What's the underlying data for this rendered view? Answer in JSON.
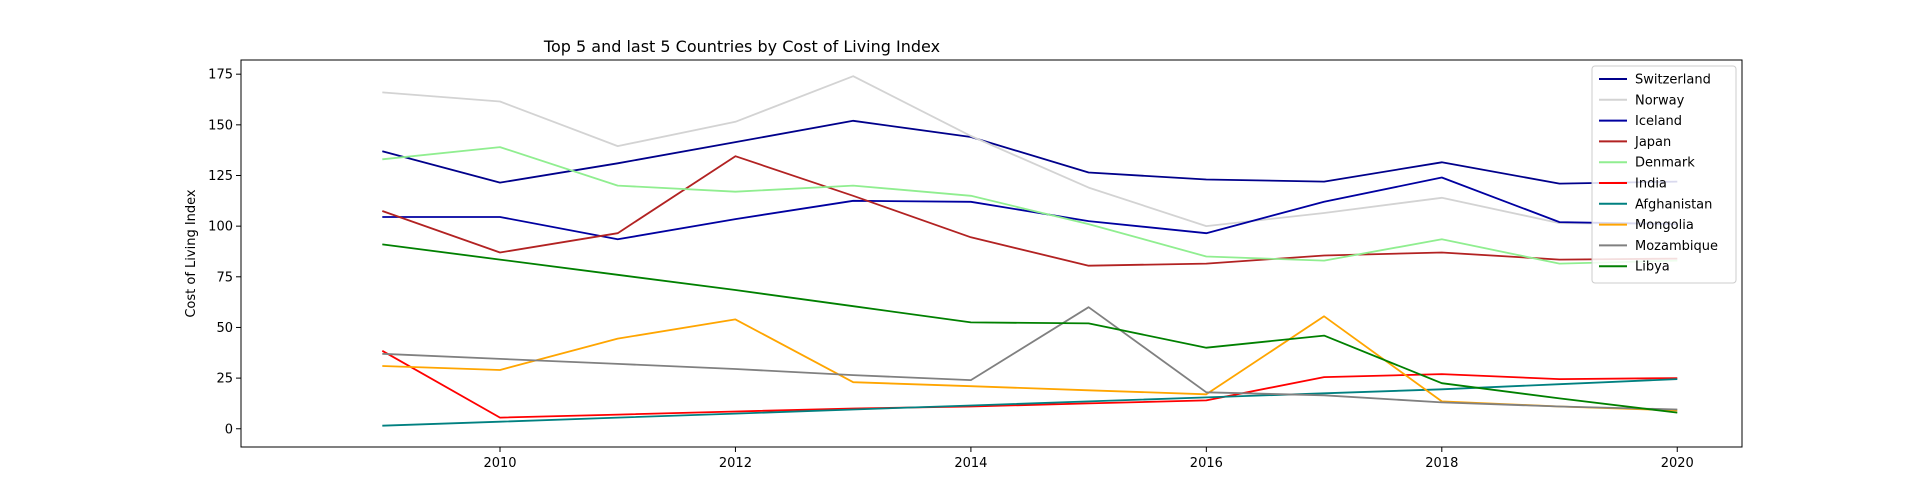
{
  "chart_data": {
    "type": "line",
    "title": "Top 5 and last 5 Countries by Cost of Living Index",
    "xlabel": "",
    "ylabel": "Cost of Living Index",
    "x": [
      2009,
      2010,
      2011,
      2012,
      2013,
      2014,
      2015,
      2016,
      2017,
      2018,
      2019,
      2020
    ],
    "xlim": [
      2007.8,
      2020.55
    ],
    "ylim": [
      -9,
      182
    ],
    "xticks": [
      2010,
      2012,
      2014,
      2016,
      2018,
      2020
    ],
    "yticks": [
      0,
      25,
      50,
      75,
      100,
      125,
      150,
      175
    ],
    "grid": false,
    "legend_position": "top-right",
    "series": [
      {
        "name": "Switzerland",
        "color": "#00008b",
        "values": [
          137,
          121.5,
          131,
          141.5,
          152,
          144,
          126.5,
          123,
          122,
          131.5,
          121,
          122
        ]
      },
      {
        "name": "Norway",
        "color": "#d3d3d3",
        "values": [
          166,
          161.5,
          139.5,
          151.5,
          174,
          144.5,
          119,
          100,
          106.5,
          114,
          101.5,
          101
        ]
      },
      {
        "name": "Iceland",
        "color": "#0000a0",
        "values": [
          104.5,
          104.5,
          93.5,
          103.5,
          112.5,
          112,
          102.5,
          96.5,
          112,
          124,
          102,
          101
        ]
      },
      {
        "name": "Japan",
        "color": "#b22222",
        "values": [
          107.5,
          87,
          96.5,
          134.5,
          115,
          94.5,
          80.5,
          81.5,
          85.5,
          87,
          83.5,
          84
        ]
      },
      {
        "name": "Denmark",
        "color": "#90ee90",
        "values": [
          133,
          139,
          120,
          117,
          120,
          115,
          101,
          85,
          83,
          93.5,
          81.5,
          83
        ]
      },
      {
        "name": "India",
        "color": "#ff0000",
        "values": [
          38.5,
          5.5,
          7,
          8.5,
          10,
          11,
          12.5,
          14,
          25.5,
          27,
          24.5,
          25
        ]
      },
      {
        "name": "Afghanistan",
        "color": "#008080",
        "values": [
          1.5,
          3.5,
          5.5,
          7.5,
          9.5,
          11.5,
          13.5,
          15.5,
          17.5,
          19.5,
          22,
          24.5
        ]
      },
      {
        "name": "Mongolia",
        "color": "#ffa500",
        "values": [
          31,
          29,
          44.5,
          54,
          23,
          21,
          19,
          17,
          55.5,
          13.5,
          11,
          9
        ]
      },
      {
        "name": "Mozambique",
        "color": "#808080",
        "values": [
          37,
          34.5,
          32,
          29.5,
          26.5,
          24,
          60,
          18,
          16.5,
          13,
          11,
          9.5
        ]
      },
      {
        "name": "Libya",
        "color": "#008000",
        "values": [
          91,
          83.5,
          76,
          68.5,
          60.5,
          52.5,
          52,
          40,
          46,
          22.5,
          15,
          8
        ]
      }
    ]
  }
}
